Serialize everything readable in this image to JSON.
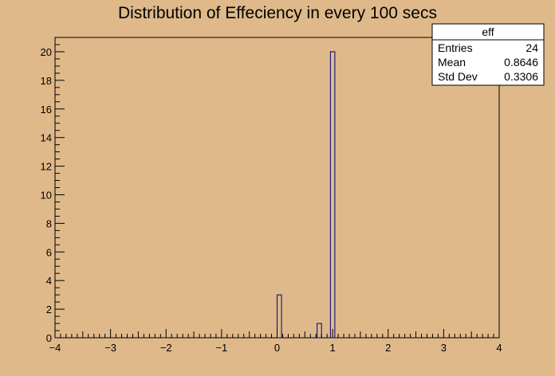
{
  "chart_data": {
    "type": "bar",
    "title": "Distribution of Effeciency in every 100 secs",
    "xlabel": "",
    "ylabel": "",
    "xlim": [
      -4,
      4
    ],
    "ylim": [
      0,
      21
    ],
    "x_ticks": [
      "−4",
      "−3",
      "−2",
      "−1",
      "0",
      "1",
      "2",
      "3",
      "4"
    ],
    "y_ticks": [
      "0",
      "2",
      "4",
      "6",
      "8",
      "10",
      "12",
      "14",
      "16",
      "18",
      "20"
    ],
    "bin_width": 0.08,
    "bins": [
      {
        "x_low": 0.0,
        "x_high": 0.08,
        "count": 3
      },
      {
        "x_low": 0.72,
        "x_high": 0.8,
        "count": 1
      },
      {
        "x_low": 0.96,
        "x_high": 1.04,
        "count": 20
      }
    ],
    "bar_fill": "#dfb98a",
    "bar_stroke": "#00007f",
    "background": "#dfb98a",
    "stats_box": {
      "title": "eff",
      "rows": [
        {
          "label": "Entries",
          "value": "24"
        },
        {
          "label": "Mean",
          "value": "0.8646"
        },
        {
          "label": "Std Dev",
          "value": "0.3306"
        }
      ]
    }
  }
}
